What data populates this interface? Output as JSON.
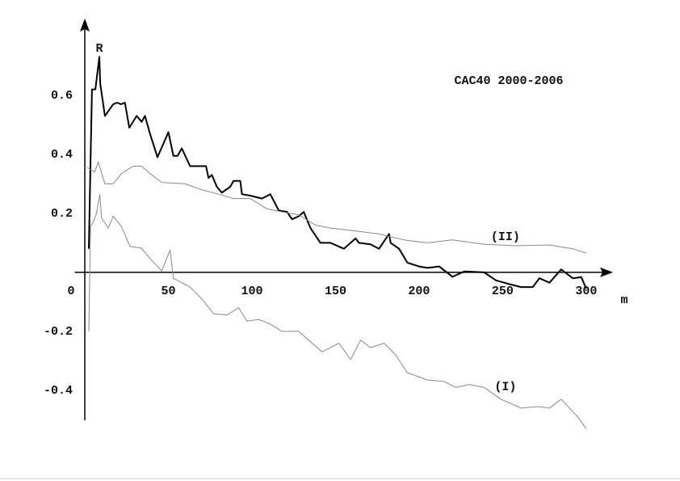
{
  "chart_data": {
    "type": "line",
    "title": "CAC40 2000-2006",
    "x_label": "m",
    "y_label": "R",
    "xlim": [
      -6,
      316
    ],
    "ylim": [
      -0.54,
      0.86
    ],
    "xticks": [
      0,
      50,
      100,
      150,
      200,
      250,
      300
    ],
    "yticks": [
      -0.4,
      -0.2,
      0.2,
      0.4,
      0.6
    ],
    "grid": false,
    "series": [
      {
        "color": "#000000",
        "x": [
          2.4,
          3.4,
          4.3,
          6.3,
          8.7,
          9.2,
          12,
          17,
          19.3,
          21.7,
          24,
          26.6,
          31,
          34,
          36,
          39,
          43.5,
          50,
          53,
          55.5,
          58,
          63,
          72.5,
          74,
          76,
          79,
          82,
          87,
          89,
          93,
          94,
          99,
          106,
          111,
          116,
          121,
          124,
          128,
          131,
          135,
          141,
          147,
          155,
          162,
          164,
          171,
          176,
          182,
          183,
          188,
          193,
          200,
          205,
          212,
          220,
          227,
          239,
          246,
          254,
          261,
          268,
          272,
          278,
          285,
          292,
          297,
          300
        ],
        "values": [
          0.08,
          0.375,
          0.62,
          0.62,
          0.73,
          0.64,
          0.53,
          0.57,
          0.575,
          0.57,
          0.575,
          0.49,
          0.53,
          0.51,
          0.53,
          0.47,
          0.39,
          0.475,
          0.395,
          0.395,
          0.42,
          0.36,
          0.36,
          0.32,
          0.33,
          0.29,
          0.27,
          0.29,
          0.31,
          0.31,
          0.265,
          0.26,
          0.25,
          0.265,
          0.21,
          0.205,
          0.18,
          0.19,
          0.205,
          0.15,
          0.1,
          0.1,
          0.08,
          0.115,
          0.1,
          0.095,
          0.08,
          0.13,
          0.1,
          0.08,
          0.033,
          0.02,
          0.015,
          0.02,
          -0.015,
          0.003,
          0,
          -0.027,
          -0.04,
          -0.05,
          -0.05,
          -0.02,
          -0.035,
          0.01,
          -0.02,
          -0.016,
          -0.055
        ]
      },
      {
        "name": "(II)",
        "color": "#888888",
        "x": [
          1.5,
          6,
          8,
          12,
          17,
          22,
          29,
          34,
          39,
          46,
          60,
          70,
          80,
          89,
          99,
          109,
          118,
          128,
          138,
          147,
          162,
          176,
          191,
          205,
          220,
          239,
          258,
          278,
          292,
          300
        ],
        "values": [
          0.355,
          0.34,
          0.375,
          0.3,
          0.3,
          0.335,
          0.36,
          0.36,
          0.335,
          0.305,
          0.3,
          0.28,
          0.265,
          0.25,
          0.25,
          0.215,
          0.205,
          0.195,
          0.16,
          0.15,
          0.14,
          0.13,
          0.11,
          0.1,
          0.11,
          0.095,
          0.09,
          0.093,
          0.08,
          0.065
        ]
      },
      {
        "name": "(I)",
        "color": "#888888",
        "x": [
          2.4,
          3.4,
          5,
          7,
          9,
          10,
          14,
          17,
          22,
          27,
          34,
          39,
          46,
          51,
          53,
          63,
          70,
          77,
          85,
          92,
          97,
          104,
          111,
          118,
          128,
          142,
          152,
          159,
          165,
          171,
          179,
          186,
          193,
          205,
          215,
          222,
          230,
          239,
          249,
          261,
          271,
          278,
          285,
          290,
          295,
          300
        ],
        "values": [
          -0.2,
          0.155,
          0.17,
          0.2,
          0.265,
          0.185,
          0.15,
          0.19,
          0.155,
          0.088,
          0.082,
          0.047,
          0.005,
          0.075,
          -0.02,
          -0.05,
          -0.09,
          -0.14,
          -0.145,
          -0.12,
          -0.165,
          -0.16,
          -0.175,
          -0.2,
          -0.2,
          -0.27,
          -0.24,
          -0.295,
          -0.23,
          -0.255,
          -0.24,
          -0.28,
          -0.34,
          -0.365,
          -0.37,
          -0.39,
          -0.38,
          -0.39,
          -0.43,
          -0.46,
          -0.455,
          -0.46,
          -0.43,
          -0.46,
          -0.49,
          -0.53
        ]
      }
    ]
  }
}
